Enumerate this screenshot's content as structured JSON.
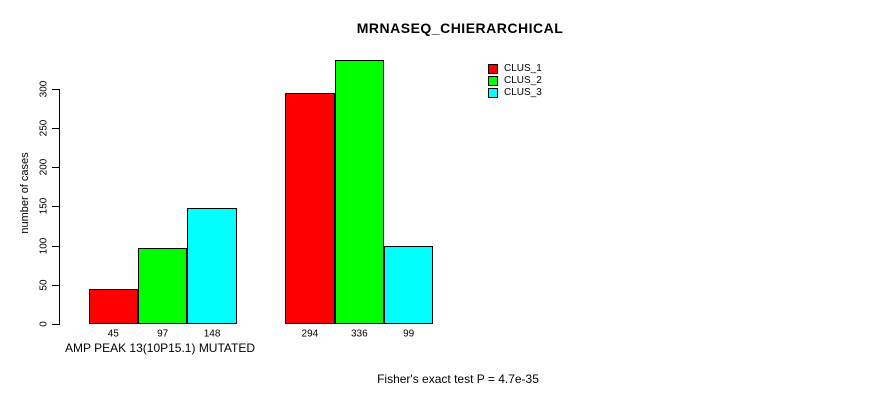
{
  "title": "MRNASEQ_CHIERARCHICAL",
  "chart_data": {
    "type": "bar",
    "title": "MRNASEQ_CHIERARCHICAL",
    "xlabel": "AMP PEAK 13(10P15.1) MUTATED",
    "ylabel": "number of cases",
    "categories": [
      "AMP PEAK 13(10P15.1) MUTATED",
      ""
    ],
    "series": [
      {
        "name": "CLUS_1",
        "color": "#FF0000",
        "values": [
          45,
          294
        ]
      },
      {
        "name": "CLUS_2",
        "color": "#00FF00",
        "values": [
          97,
          336
        ]
      },
      {
        "name": "CLUS_3",
        "color": "#00FFFF",
        "values": [
          148,
          99
        ]
      }
    ],
    "group_values": [
      [
        45,
        97,
        148
      ],
      [
        294,
        336,
        99
      ]
    ],
    "bar_value_labels": [
      "45",
      "97",
      "148",
      "294",
      "336",
      "99"
    ],
    "y_ticks": [
      0,
      50,
      100,
      150,
      200,
      250,
      300
    ],
    "ylim": [
      0,
      336
    ],
    "grid": false,
    "legend_position": "top-right",
    "annotation": "Fisher's exact test P = 4.7e-35"
  },
  "legend": {
    "items": [
      {
        "label": "CLUS_1",
        "color": "#FF0000"
      },
      {
        "label": "CLUS_2",
        "color": "#00FF00"
      },
      {
        "label": "CLUS_3",
        "color": "#00FFFF"
      }
    ]
  },
  "footer": "Fisher's exact test P = 4.7e-35"
}
